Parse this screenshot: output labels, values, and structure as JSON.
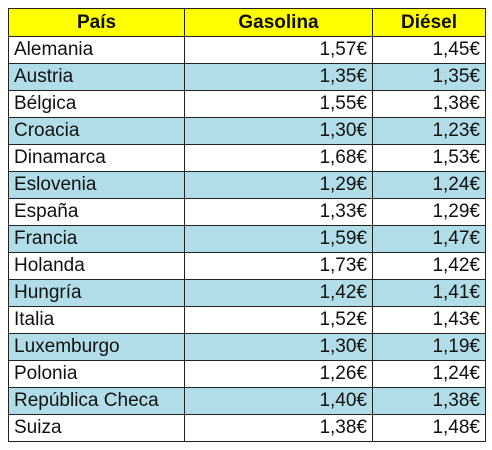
{
  "table": {
    "headers": [
      "País",
      "Gasolina",
      "Diésel"
    ],
    "rows": [
      {
        "pais": "Alemania",
        "gasolina": "1,57€",
        "diesel": "1,45€"
      },
      {
        "pais": "Austria",
        "gasolina": "1,35€",
        "diesel": "1,35€"
      },
      {
        "pais": "Bélgica",
        "gasolina": "1,55€",
        "diesel": "1,38€"
      },
      {
        "pais": "Croacia",
        "gasolina": "1,30€",
        "diesel": "1,23€"
      },
      {
        "pais": "Dinamarca",
        "gasolina": "1,68€",
        "diesel": "1,53€"
      },
      {
        "pais": "Eslovenia",
        "gasolina": "1,29€",
        "diesel": "1,24€"
      },
      {
        "pais": "España",
        "gasolina": "1,33€",
        "diesel": "1,29€"
      },
      {
        "pais": "Francia",
        "gasolina": "1,59€",
        "diesel": "1,47€"
      },
      {
        "pais": "Holanda",
        "gasolina": "1,73€",
        "diesel": "1,42€"
      },
      {
        "pais": "Hungría",
        "gasolina": "1,42€",
        "diesel": "1,41€"
      },
      {
        "pais": "Italia",
        "gasolina": "1,52€",
        "diesel": "1,43€"
      },
      {
        "pais": "Luxemburgo",
        "gasolina": "1,30€",
        "diesel": "1,19€"
      },
      {
        "pais": "Polonia",
        "gasolina": "1,26€",
        "diesel": "1,24€"
      },
      {
        "pais": "República Checa",
        "gasolina": "1,40€",
        "diesel": "1,38€"
      },
      {
        "pais": "Suiza",
        "gasolina": "1,38€",
        "diesel": "1,48€"
      }
    ]
  },
  "colors": {
    "header_bg": "#ffff00",
    "alt_row_bg": "#b0dde8",
    "row_bg": "#ffffff",
    "border": "#222222"
  }
}
